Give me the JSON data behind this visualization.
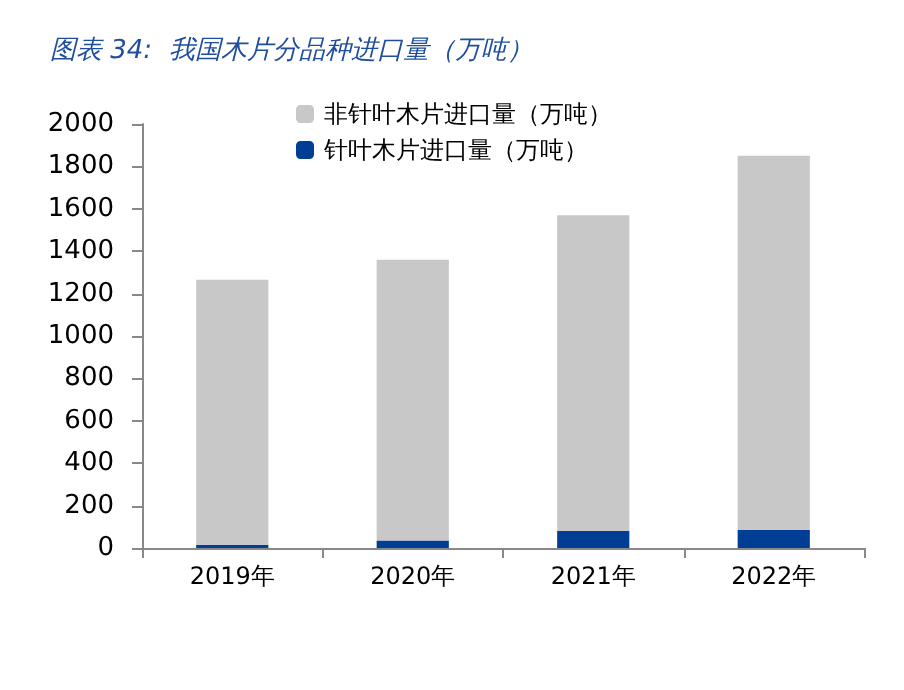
{
  "chart_data": {
    "type": "bar",
    "title": "图表 34:  我国木片分品种进口量（万吨）",
    "categories": [
      "2019年",
      "2020年",
      "2021年",
      "2022年"
    ],
    "stacked": true,
    "series": [
      {
        "name": "针叶木片进口量（万吨）",
        "color": "#003d94",
        "values": [
          15,
          35,
          80,
          85
        ]
      },
      {
        "name": "非针叶木片进口量（万吨）",
        "color": "#c8c8c8",
        "values": [
          1250,
          1325,
          1490,
          1765
        ]
      }
    ],
    "ylim": [
      0,
      2000
    ],
    "yticks": [
      0,
      200,
      400,
      600,
      800,
      1000,
      1200,
      1400,
      1600,
      1800,
      2000
    ],
    "grid": false,
    "legend": "top"
  }
}
